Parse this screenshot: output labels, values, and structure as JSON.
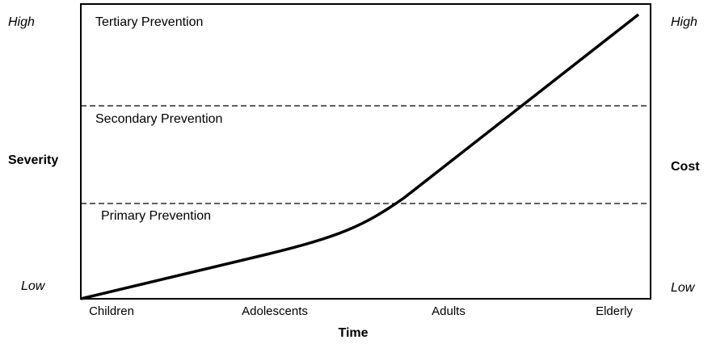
{
  "left_axis": {
    "high": "High",
    "label": "Severity",
    "low": "Low"
  },
  "right_axis": {
    "high": "High",
    "label": "Cost",
    "low": "Low"
  },
  "zones": [
    "Tertiary Prevention",
    "Secondary Prevention",
    "Primary Prevention"
  ],
  "x_axis": {
    "label": "Time",
    "stages": [
      "Children",
      "Adolescents",
      "Adults",
      "Elderly"
    ]
  }
}
